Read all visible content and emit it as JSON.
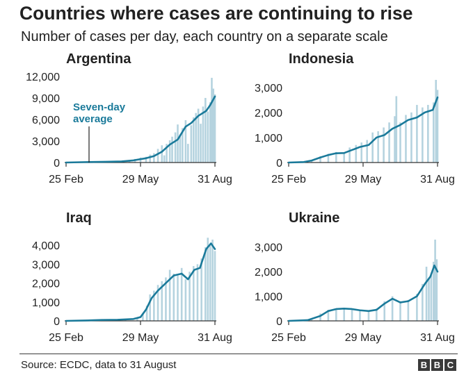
{
  "header": {
    "title": "Countries where cases are continuing to rise",
    "subtitle": "Number of cases per day, each country on a separate scale"
  },
  "footer": {
    "source": "Source: ECDC, data to 31 August",
    "logo_letters": [
      "B",
      "B",
      "C"
    ]
  },
  "colors": {
    "bars": "#b5d3df",
    "line": "#1a7a9a",
    "annotation": "#1a7a9a",
    "axis": "#333333",
    "text": "#222222"
  },
  "chart_data": [
    {
      "type": "bar",
      "title": "Argentina",
      "x_tick_labels": [
        "25 Feb",
        "29 May",
        "31 Aug"
      ],
      "ylim": [
        0,
        12000
      ],
      "y_ticks": [
        0,
        3000,
        6000,
        9000,
        12000
      ],
      "y_tick_labels": [
        "0",
        "3,000",
        "6,000",
        "9,000",
        "12,000"
      ],
      "annotation": {
        "lines": [
          "Seven-day",
          "average"
        ]
      },
      "series": [
        {
          "name": "Seven-day average",
          "style": "line",
          "x": [
            "2020-02-25",
            "2020-03-20",
            "2020-04-15",
            "2020-05-05",
            "2020-05-20",
            "2020-06-05",
            "2020-06-15",
            "2020-06-25",
            "2020-07-05",
            "2020-07-15",
            "2020-07-25",
            "2020-08-01",
            "2020-08-10",
            "2020-08-20",
            "2020-08-25",
            "2020-08-31"
          ],
          "y": [
            0,
            60,
            100,
            150,
            300,
            600,
            900,
            1500,
            2500,
            3200,
            5000,
            5500,
            6500,
            7200,
            8000,
            9200
          ]
        }
      ],
      "bars": {
        "x": [
          "2020-02-25",
          "2020-03-10",
          "2020-03-25",
          "2020-04-05",
          "2020-04-15",
          "2020-04-25",
          "2020-05-05",
          "2020-05-15",
          "2020-05-22",
          "2020-05-29",
          "2020-06-05",
          "2020-06-10",
          "2020-06-15",
          "2020-06-20",
          "2020-06-25",
          "2020-06-28",
          "2020-07-01",
          "2020-07-05",
          "2020-07-08",
          "2020-07-12",
          "2020-07-15",
          "2020-07-18",
          "2020-07-21",
          "2020-07-25",
          "2020-07-28",
          "2020-08-01",
          "2020-08-04",
          "2020-08-07",
          "2020-08-10",
          "2020-08-13",
          "2020-08-16",
          "2020-08-19",
          "2020-08-22",
          "2020-08-25",
          "2020-08-27",
          "2020-08-29",
          "2020-08-31"
        ],
        "y": [
          0,
          30,
          80,
          110,
          100,
          180,
          200,
          350,
          500,
          700,
          800,
          1100,
          1300,
          1900,
          2400,
          1000,
          2600,
          3100,
          3600,
          4200,
          5300,
          3900,
          4800,
          5900,
          2600,
          5200,
          6300,
          6900,
          7500,
          5400,
          7800,
          9000,
          7100,
          8400,
          11800,
          10300,
          9500
        ]
      }
    },
    {
      "type": "bar",
      "title": "Indonesia",
      "x_tick_labels": [
        "25 Feb",
        "29 May",
        "31 Aug"
      ],
      "ylim": [
        0,
        3300
      ],
      "y_ticks": [
        0,
        1000,
        2000,
        3000
      ],
      "y_tick_labels": [
        "0",
        "1,000",
        "2,000",
        "3,000"
      ],
      "series": [
        {
          "name": "Seven-day average",
          "style": "line",
          "x": [
            "2020-02-25",
            "2020-03-15",
            "2020-03-25",
            "2020-04-05",
            "2020-04-15",
            "2020-04-25",
            "2020-05-05",
            "2020-05-15",
            "2020-05-25",
            "2020-06-05",
            "2020-06-15",
            "2020-06-25",
            "2020-07-05",
            "2020-07-15",
            "2020-07-25",
            "2020-08-05",
            "2020-08-15",
            "2020-08-25",
            "2020-08-31"
          ],
          "y": [
            0,
            20,
            80,
            200,
            300,
            370,
            380,
            500,
            620,
            700,
            1000,
            1100,
            1350,
            1500,
            1700,
            1800,
            2000,
            2100,
            2600
          ]
        }
      ],
      "bars": {
        "x": [
          "2020-03-10",
          "2020-03-25",
          "2020-04-05",
          "2020-04-15",
          "2020-04-25",
          "2020-05-05",
          "2020-05-12",
          "2020-05-20",
          "2020-05-27",
          "2020-06-03",
          "2020-06-10",
          "2020-06-17",
          "2020-06-24",
          "2020-07-01",
          "2020-07-08",
          "2020-07-10",
          "2020-07-15",
          "2020-07-22",
          "2020-07-29",
          "2020-08-05",
          "2020-08-12",
          "2020-08-19",
          "2020-08-26",
          "2020-08-29",
          "2020-08-31"
        ],
        "y": [
          20,
          100,
          250,
          350,
          420,
          400,
          600,
          700,
          800,
          900,
          1200,
          1250,
          1400,
          1600,
          1850,
          2650,
          1600,
          1900,
          2000,
          2300,
          2200,
          2300,
          2400,
          3300,
          2900
        ]
      }
    },
    {
      "type": "bar",
      "title": "Iraq",
      "x_tick_labels": [
        "25 Feb",
        "29 May",
        "31 Aug"
      ],
      "ylim": [
        0,
        4300
      ],
      "y_ticks": [
        0,
        1000,
        2000,
        3000,
        4000
      ],
      "y_tick_labels": [
        "0",
        "1,000",
        "2,000",
        "3,000",
        "4,000"
      ],
      "series": [
        {
          "name": "Seven-day average",
          "style": "line",
          "x": [
            "2020-02-25",
            "2020-03-20",
            "2020-04-10",
            "2020-04-30",
            "2020-05-20",
            "2020-05-29",
            "2020-06-05",
            "2020-06-12",
            "2020-06-20",
            "2020-06-30",
            "2020-07-10",
            "2020-07-20",
            "2020-07-28",
            "2020-08-05",
            "2020-08-12",
            "2020-08-20",
            "2020-08-26",
            "2020-08-31"
          ],
          "y": [
            0,
            20,
            50,
            60,
            100,
            200,
            600,
            1200,
            1600,
            2000,
            2400,
            2500,
            2200,
            2700,
            2800,
            3800,
            4100,
            3800
          ]
        }
      ],
      "bars": {
        "x": [
          "2020-03-15",
          "2020-04-10",
          "2020-05-10",
          "2020-05-25",
          "2020-06-01",
          "2020-06-06",
          "2020-06-10",
          "2020-06-15",
          "2020-06-20",
          "2020-06-25",
          "2020-06-30",
          "2020-07-05",
          "2020-07-10",
          "2020-07-15",
          "2020-07-20",
          "2020-07-25",
          "2020-07-30",
          "2020-08-04",
          "2020-08-09",
          "2020-08-14",
          "2020-08-19",
          "2020-08-22",
          "2020-08-25",
          "2020-08-28",
          "2020-08-31"
        ],
        "y": [
          30,
          60,
          90,
          150,
          400,
          800,
          1400,
          1600,
          1900,
          2100,
          2300,
          2700,
          2500,
          2400,
          2800,
          2200,
          2600,
          2900,
          3000,
          3300,
          3900,
          4400,
          4000,
          4300,
          3700
        ]
      }
    },
    {
      "type": "bar",
      "title": "Ukraine",
      "x_tick_labels": [
        "25 Feb",
        "29 May",
        "31 Aug"
      ],
      "ylim": [
        0,
        3300
      ],
      "y_ticks": [
        0,
        1000,
        2000,
        3000
      ],
      "y_tick_labels": [
        "0",
        "1,000",
        "2,000",
        "3,000"
      ],
      "series": [
        {
          "name": "Seven-day average",
          "style": "line",
          "x": [
            "2020-02-25",
            "2020-03-20",
            "2020-04-05",
            "2020-04-15",
            "2020-04-25",
            "2020-05-05",
            "2020-05-15",
            "2020-05-25",
            "2020-06-05",
            "2020-06-15",
            "2020-06-25",
            "2020-07-05",
            "2020-07-15",
            "2020-07-25",
            "2020-08-05",
            "2020-08-15",
            "2020-08-22",
            "2020-08-27",
            "2020-08-31"
          ],
          "y": [
            0,
            30,
            200,
            400,
            480,
            500,
            480,
            430,
            400,
            450,
            700,
            900,
            750,
            800,
            1000,
            1500,
            1800,
            2250,
            2000
          ]
        }
      ],
      "bars": {
        "x": [
          "2020-03-25",
          "2020-04-05",
          "2020-04-15",
          "2020-04-25",
          "2020-05-05",
          "2020-05-15",
          "2020-05-25",
          "2020-06-05",
          "2020-06-15",
          "2020-06-25",
          "2020-07-05",
          "2020-07-15",
          "2020-07-25",
          "2020-08-05",
          "2020-08-12",
          "2020-08-17",
          "2020-08-20",
          "2020-08-23",
          "2020-08-26",
          "2020-08-28",
          "2020-08-30"
        ],
        "y": [
          80,
          300,
          450,
          500,
          530,
          500,
          450,
          420,
          500,
          800,
          1000,
          800,
          850,
          1100,
          1500,
          2200,
          1700,
          1900,
          2400,
          3300,
          2500
        ]
      }
    }
  ]
}
